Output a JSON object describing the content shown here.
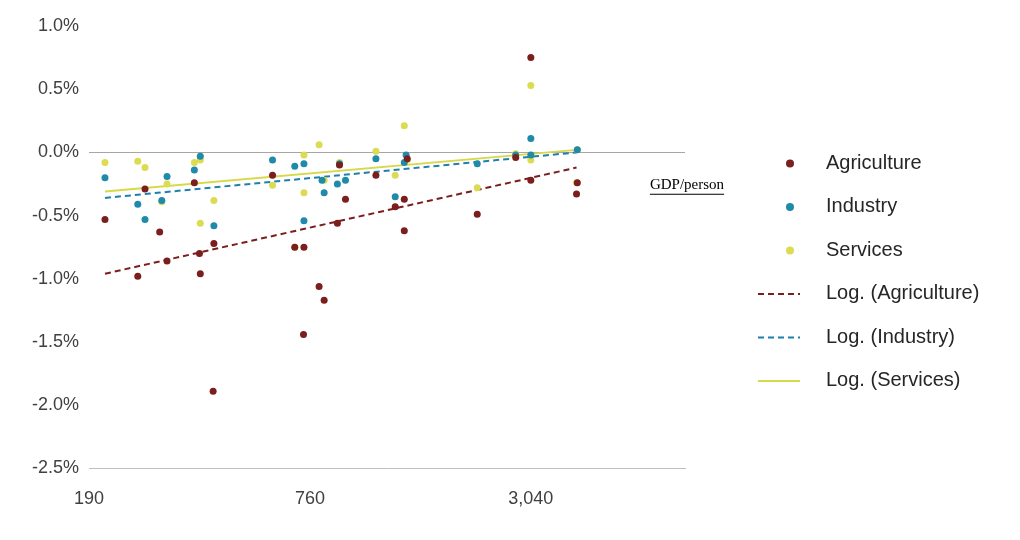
{
  "chart_data": {
    "type": "scatter",
    "xlabel": "GDP/person",
    "log": "x",
    "grid": false,
    "legend": "right",
    "xlim": [
      190,
      8000
    ],
    "xticks": [
      190,
      760,
      {
        "value": 3040,
        "label": "3,040"
      }
    ],
    "ylim": [
      -2.5,
      1.0
    ],
    "yticks": [
      {
        "value": -2.5,
        "label": "-2.5%"
      },
      {
        "value": -2.0,
        "label": "-2.0%"
      },
      {
        "value": -1.5,
        "label": "-1.5%"
      },
      {
        "value": -1.0,
        "label": "-1.0%"
      },
      {
        "value": -0.5,
        "label": "-0.5%"
      },
      {
        "value": 0.0,
        "label": "0.0%"
      },
      {
        "value": 0.5,
        "label": "0.5%"
      },
      {
        "value": 1.0,
        "label": "1.0%"
      }
    ],
    "series": [
      {
        "name": "Agriculture",
        "color": "#7b1e1e",
        "marker": "circle",
        "x": [
          210,
          258,
          270,
          296,
          310,
          368,
          380,
          382,
          416,
          414,
          601,
          691,
          732,
          730,
          805,
          831,
          903,
          915,
          950,
          1150,
          1298,
          1374,
          1374,
          1400,
          2172,
          2765,
          3040,
          3040,
          4050,
          4070
        ],
        "values": [
          -0.53,
          -0.98,
          -0.29,
          -0.63,
          -0.86,
          -0.24,
          -0.8,
          -0.96,
          -0.72,
          -1.89,
          -0.18,
          -0.75,
          -0.75,
          -1.44,
          -1.06,
          -1.17,
          -0.56,
          -0.1,
          -0.37,
          -0.18,
          -0.43,
          -0.37,
          -0.62,
          -0.05,
          -0.49,
          -0.04,
          -0.22,
          0.75,
          -0.33,
          -0.24
        ]
      },
      {
        "name": "Industry",
        "color": "#1f8aaa",
        "marker": "circle",
        "x": [
          210,
          258,
          270,
          300,
          310,
          368,
          382,
          416,
          601,
          691,
          732,
          732,
          820,
          831,
          903,
          915,
          950,
          1150,
          1298,
          1374,
          1390,
          2172,
          2765,
          3040,
          3040,
          4070
        ],
        "values": [
          -0.2,
          -0.41,
          -0.53,
          -0.38,
          -0.19,
          -0.14,
          -0.03,
          -0.58,
          -0.06,
          -0.11,
          -0.09,
          -0.54,
          -0.22,
          -0.32,
          -0.25,
          -0.09,
          -0.22,
          -0.05,
          -0.35,
          -0.08,
          -0.02,
          -0.09,
          -0.02,
          0.11,
          -0.02,
          0.02
        ]
      },
      {
        "name": "Services",
        "color": "#dcdc52",
        "marker": "circle",
        "x": [
          210,
          258,
          270,
          300,
          310,
          368,
          382,
          382,
          416,
          601,
          691,
          732,
          732,
          805,
          831,
          915,
          1150,
          1298,
          1374,
          1400,
          2172,
          2765,
          3040,
          3040,
          4050,
          4070
        ],
        "values": [
          -0.08,
          -0.07,
          -0.12,
          -0.39,
          -0.25,
          -0.08,
          -0.06,
          -0.56,
          -0.38,
          -0.26,
          -0.75,
          -0.02,
          -0.32,
          0.06,
          -0.22,
          -0.08,
          0.01,
          -0.18,
          0.21,
          -0.06,
          -0.28,
          -0.01,
          0.53,
          -0.06,
          -0.24,
          0.02
        ]
      },
      {
        "name": "Log. (Agriculture)",
        "type": "line",
        "color": "#7b1e1e",
        "line_style": "dashed",
        "x": [
          210,
          4050
        ],
        "values": [
          -0.96,
          -0.12
        ]
      },
      {
        "name": "Log. (Industry)",
        "type": "line",
        "color": "#1f7faf",
        "line_style": "dashed",
        "x": [
          210,
          4050
        ],
        "values": [
          -0.36,
          0.0
        ]
      },
      {
        "name": "Log. (Services)",
        "type": "line",
        "color": "#d8d84a",
        "line_style": "solid",
        "x": [
          210,
          4050
        ],
        "values": [
          -0.31,
          0.02
        ]
      }
    ]
  }
}
